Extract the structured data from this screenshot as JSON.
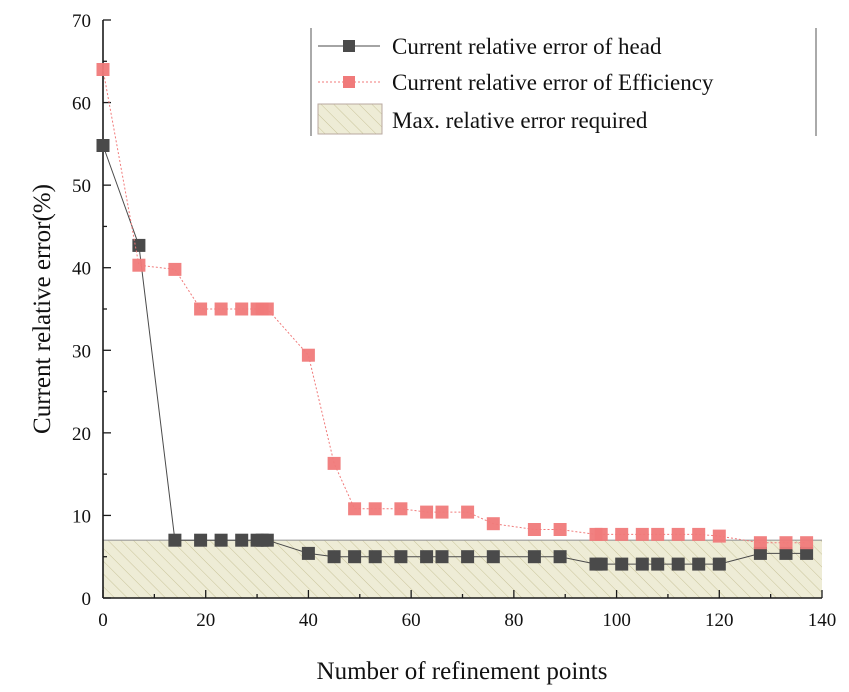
{
  "chart_data": {
    "type": "scatter",
    "title": "",
    "xlabel": "Number of refinement points",
    "ylabel": "Current relative error(%)",
    "xlim": [
      0,
      140
    ],
    "ylim": [
      0,
      70
    ],
    "xticks": [
      0,
      20,
      40,
      60,
      80,
      100,
      120,
      140
    ],
    "yticks": [
      0,
      10,
      20,
      30,
      40,
      50,
      60,
      70
    ],
    "grid": false,
    "legend_position": "top-right",
    "colors": {
      "head": "#4a4a4a",
      "efficiency": "#f07a7a",
      "band_fill": "#eeecd6",
      "band_hatch": "#c9c49a",
      "band_edge": "#9a9a9a"
    },
    "threshold_band": {
      "name": "Max. relative error required",
      "y_from": 0,
      "y_to": 7
    },
    "series": [
      {
        "name": "Current relative error of head",
        "x": [
          0,
          7,
          14,
          19,
          23,
          27,
          30,
          31,
          32,
          40,
          45,
          49,
          53,
          58,
          63,
          66,
          71,
          76,
          84,
          89,
          96,
          97,
          101,
          105,
          108,
          112,
          116,
          120,
          128,
          133,
          137
        ],
        "y": [
          54.8,
          42.7,
          7.0,
          7.0,
          7.0,
          7.0,
          7.0,
          7.0,
          7.0,
          5.4,
          5.0,
          5.0,
          5.0,
          5.0,
          5.0,
          5.0,
          5.0,
          5.0,
          5.0,
          5.0,
          4.1,
          4.1,
          4.1,
          4.1,
          4.1,
          4.1,
          4.1,
          4.1,
          5.4,
          5.4,
          5.4
        ]
      },
      {
        "name": "Current relative error of Efficiency",
        "x": [
          0,
          7,
          14,
          19,
          23,
          27,
          30,
          31,
          32,
          40,
          45,
          49,
          53,
          58,
          63,
          66,
          71,
          76,
          84,
          89,
          96,
          97,
          101,
          105,
          108,
          112,
          116,
          120,
          128,
          133,
          137
        ],
        "y": [
          64.0,
          40.3,
          39.8,
          35.0,
          35.0,
          35.0,
          35.0,
          35.0,
          35.0,
          29.4,
          16.3,
          10.8,
          10.8,
          10.8,
          10.4,
          10.4,
          10.4,
          9.0,
          8.3,
          8.3,
          7.7,
          7.7,
          7.7,
          7.7,
          7.7,
          7.7,
          7.7,
          7.5,
          6.7,
          6.7,
          6.7
        ]
      }
    ]
  }
}
